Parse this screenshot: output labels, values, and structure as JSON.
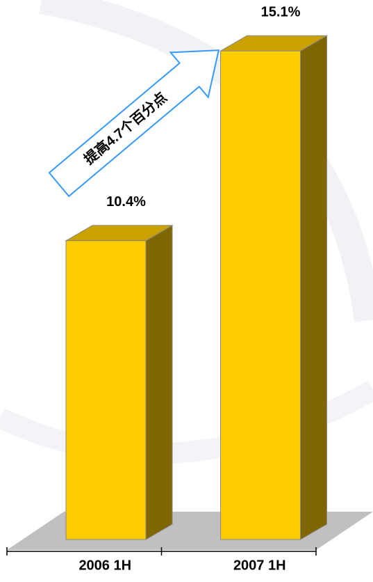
{
  "chart_data": {
    "type": "bar3d",
    "categories": [
      "2006 1H",
      "2007 1H"
    ],
    "values": [
      10.4,
      15.1
    ],
    "value_labels": [
      "10.4%",
      "15.1%"
    ],
    "annotation": "提高4.7个百分点",
    "color": "#ffcc00",
    "ylim": [
      3,
      16
    ]
  }
}
